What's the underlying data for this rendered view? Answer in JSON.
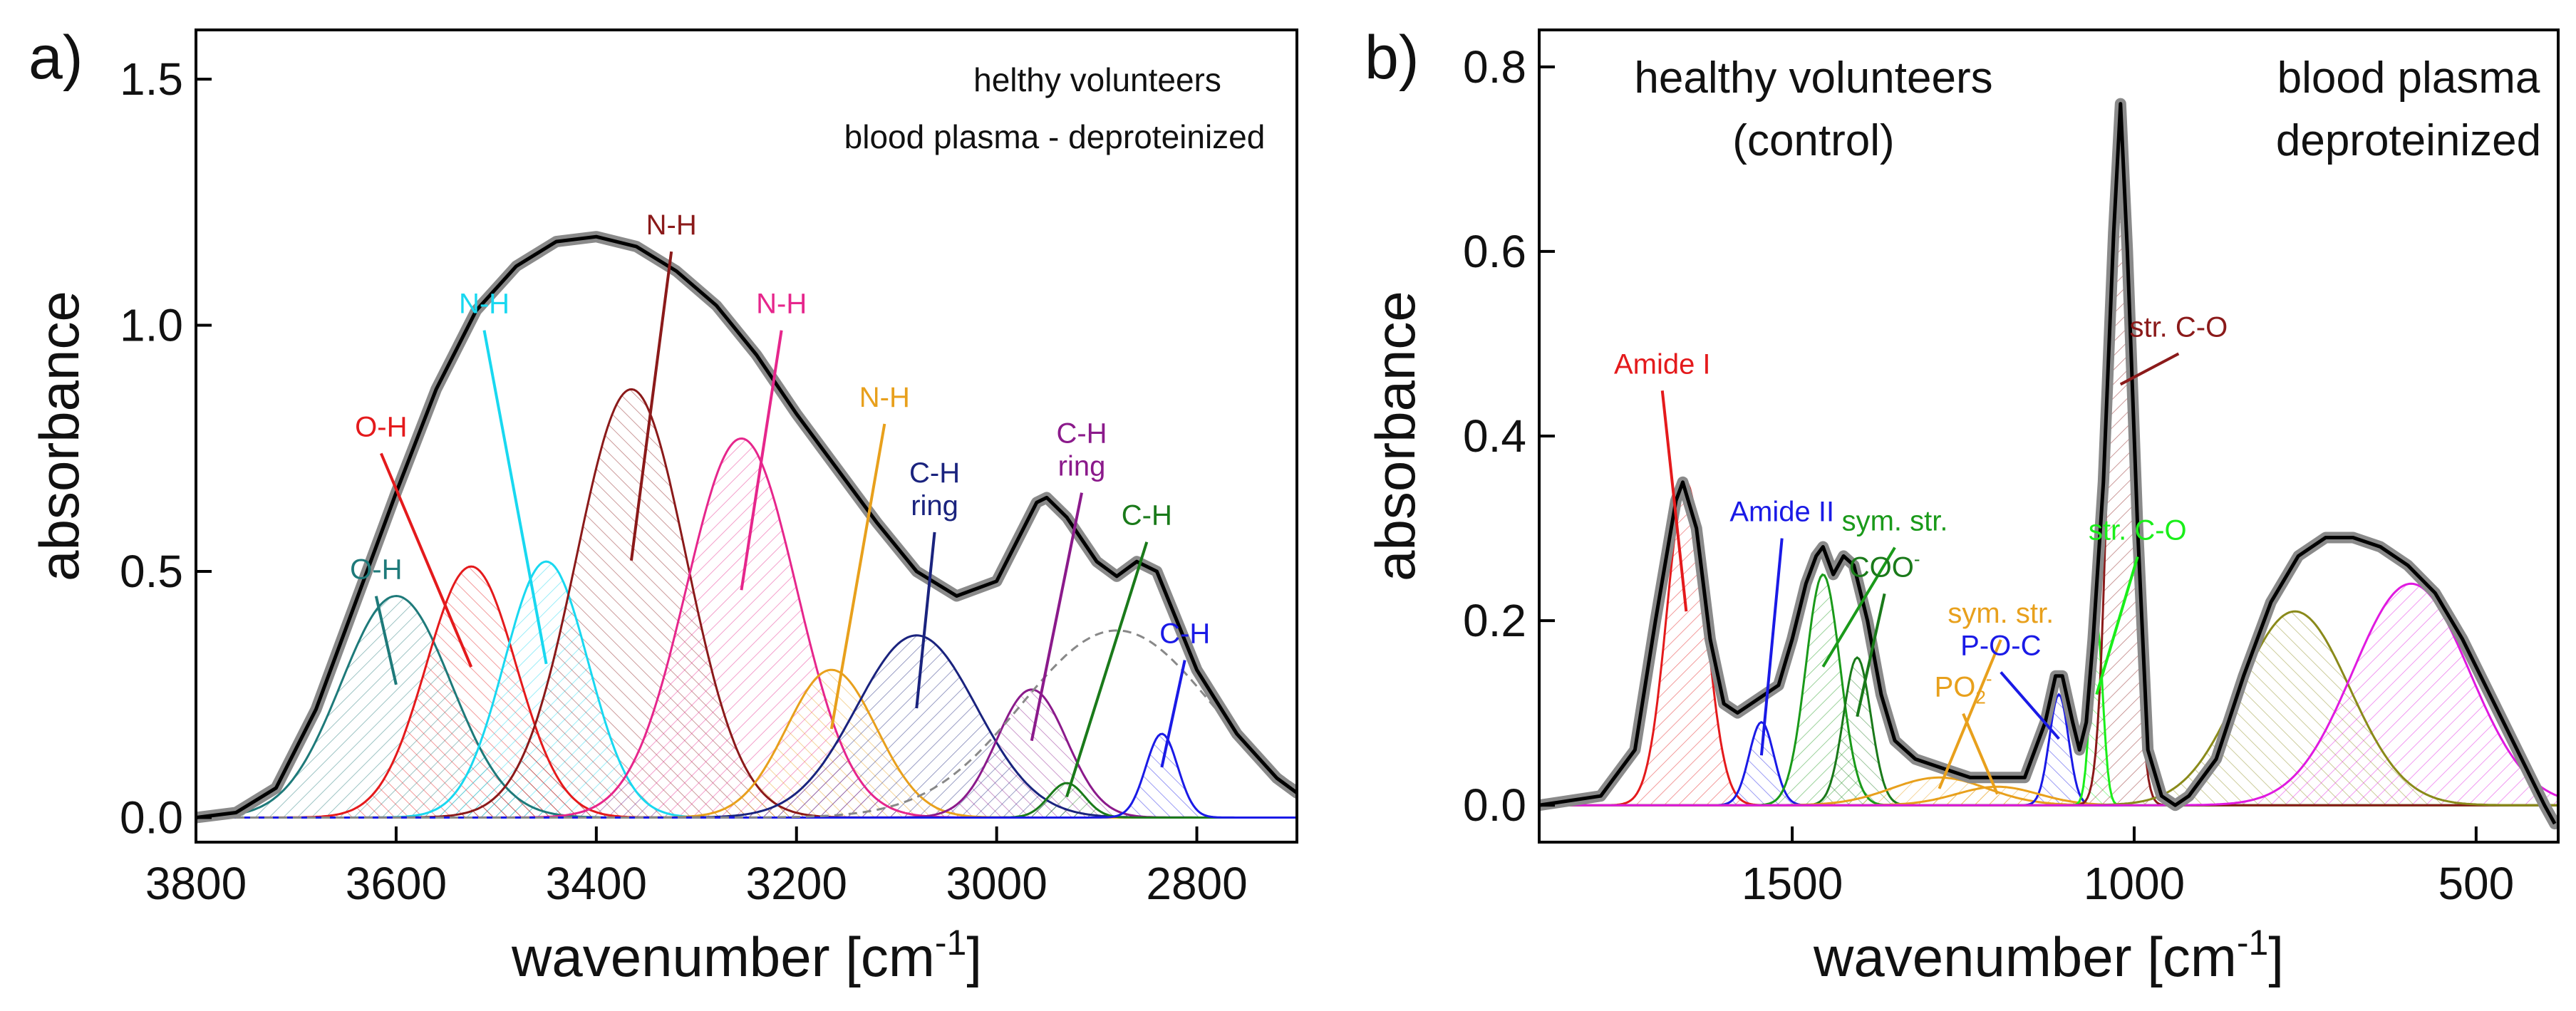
{
  "chart_data": [
    {
      "type": "line",
      "panel": "a)",
      "xlabel": "wavenumber [cm",
      "xlabel_sup": "-1",
      "xlabel_end": "]",
      "ylabel": "absorbance",
      "xlim": [
        3800,
        2700
      ],
      "ylim": [
        -0.05,
        1.6
      ],
      "xticks": [
        3800,
        3600,
        3400,
        3200,
        3000,
        2800
      ],
      "yticks": [
        0.0,
        0.5,
        1.0,
        1.5
      ],
      "xtick_labels": [
        "3800",
        "3600",
        "3400",
        "3200",
        "3000",
        "2800"
      ],
      "ytick_labels": [
        "0.0",
        "0.5",
        "1.0",
        "1.5"
      ],
      "annotations": [
        "helthy volunteers",
        "blood plasma - deproteinized"
      ],
      "measured_color": "#8a8a8a",
      "fit_color": "#000000",
      "envelope": [
        [
          3800,
          0.0
        ],
        [
          3760,
          0.01
        ],
        [
          3720,
          0.06
        ],
        [
          3680,
          0.22
        ],
        [
          3640,
          0.44
        ],
        [
          3600,
          0.66
        ],
        [
          3560,
          0.87
        ],
        [
          3520,
          1.03
        ],
        [
          3480,
          1.12
        ],
        [
          3440,
          1.17
        ],
        [
          3400,
          1.18
        ],
        [
          3360,
          1.16
        ],
        [
          3320,
          1.11
        ],
        [
          3280,
          1.04
        ],
        [
          3240,
          0.94
        ],
        [
          3200,
          0.82
        ],
        [
          3160,
          0.71
        ],
        [
          3120,
          0.6
        ],
        [
          3080,
          0.5
        ],
        [
          3040,
          0.45
        ],
        [
          3000,
          0.48
        ],
        [
          2980,
          0.56
        ],
        [
          2960,
          0.64
        ],
        [
          2950,
          0.65
        ],
        [
          2930,
          0.61
        ],
        [
          2900,
          0.52
        ],
        [
          2880,
          0.49
        ],
        [
          2860,
          0.52
        ],
        [
          2840,
          0.5
        ],
        [
          2820,
          0.4
        ],
        [
          2800,
          0.3
        ],
        [
          2760,
          0.17
        ],
        [
          2720,
          0.08
        ],
        [
          2700,
          0.05
        ]
      ],
      "shoulder": {
        "name": "dashed-baseline-band",
        "center": 2880,
        "height": 0.38,
        "sigma": 95,
        "color": "#888888"
      },
      "series": [
        {
          "name": "O-H",
          "center": 3600,
          "height": 0.45,
          "sigma": 55,
          "color": "#1e7a7a",
          "label_at": [
            3620,
            0.47
          ]
        },
        {
          "name": "O-H",
          "center": 3525,
          "height": 0.51,
          "sigma": 45,
          "color": "#e41a1c",
          "label_at": [
            3615,
            0.76
          ]
        },
        {
          "name": "N-H",
          "center": 3450,
          "height": 0.52,
          "sigma": 42,
          "color": "#19d8f0",
          "label_at": [
            3512,
            1.01
          ]
        },
        {
          "name": "N-H",
          "center": 3365,
          "height": 0.87,
          "sigma": 55,
          "color": "#8b1a1a",
          "label_at": [
            3325,
            1.17
          ]
        },
        {
          "name": "N-H",
          "center": 3255,
          "height": 0.77,
          "sigma": 55,
          "color": "#e6268c",
          "label_at": [
            3215,
            1.01
          ]
        },
        {
          "name": "N-H",
          "center": 3165,
          "height": 0.3,
          "sigma": 45,
          "color": "#e8a01c",
          "label_at": [
            3112,
            0.82
          ]
        },
        {
          "name": "C-H\nring",
          "center": 3080,
          "height": 0.37,
          "sigma": 60,
          "color": "#1a237e",
          "label_at": [
            3062,
            0.6
          ]
        },
        {
          "name": "C-H\nring",
          "center": 2965,
          "height": 0.26,
          "sigma": 35,
          "color": "#8b1a8b",
          "label_at": [
            2915,
            0.68
          ]
        },
        {
          "name": "C-H",
          "center": 2930,
          "height": 0.07,
          "sigma": 18,
          "color": "#1a7a1a",
          "label_at": [
            2850,
            0.58
          ]
        },
        {
          "name": "C-H",
          "center": 2835,
          "height": 0.17,
          "sigma": 16,
          "color": "#1a1ae6",
          "label_at": [
            2812,
            0.34
          ]
        }
      ]
    },
    {
      "type": "line",
      "panel": "b)",
      "xlabel": "wavenumber [cm",
      "xlabel_sup": "-1",
      "xlabel_end": "]",
      "ylabel": "absorbance",
      "xlim": [
        1870,
        380
      ],
      "ylim": [
        -0.04,
        0.84
      ],
      "xticks": [
        1500,
        1000,
        500
      ],
      "yticks": [
        0.0,
        0.2,
        0.4,
        0.6,
        0.8
      ],
      "xtick_labels": [
        "1500",
        "1000",
        "500"
      ],
      "ytick_labels": [
        "0.0",
        "0.2",
        "0.4",
        "0.6",
        "0.8"
      ],
      "annotations": [
        "healthy volunteers",
        "(control)",
        "blood plasma",
        "deproteinized"
      ],
      "measured_color": "#8a8a8a",
      "fit_color": "#000000",
      "baseline_color": "#e41a1c",
      "envelope": [
        [
          1870,
          0.0
        ],
        [
          1780,
          0.01
        ],
        [
          1730,
          0.06
        ],
        [
          1700,
          0.2
        ],
        [
          1670,
          0.33
        ],
        [
          1660,
          0.35
        ],
        [
          1640,
          0.3
        ],
        [
          1620,
          0.18
        ],
        [
          1600,
          0.11
        ],
        [
          1580,
          0.1
        ],
        [
          1560,
          0.11
        ],
        [
          1540,
          0.12
        ],
        [
          1520,
          0.13
        ],
        [
          1500,
          0.18
        ],
        [
          1480,
          0.24
        ],
        [
          1465,
          0.27
        ],
        [
          1455,
          0.28
        ],
        [
          1440,
          0.25
        ],
        [
          1425,
          0.27
        ],
        [
          1410,
          0.26
        ],
        [
          1390,
          0.2
        ],
        [
          1370,
          0.12
        ],
        [
          1350,
          0.07
        ],
        [
          1320,
          0.05
        ],
        [
          1280,
          0.04
        ],
        [
          1240,
          0.03
        ],
        [
          1200,
          0.03
        ],
        [
          1160,
          0.03
        ],
        [
          1130,
          0.09
        ],
        [
          1115,
          0.14
        ],
        [
          1105,
          0.14
        ],
        [
          1090,
          0.09
        ],
        [
          1080,
          0.06
        ],
        [
          1070,
          0.09
        ],
        [
          1060,
          0.18
        ],
        [
          1045,
          0.35
        ],
        [
          1030,
          0.62
        ],
        [
          1020,
          0.76
        ],
        [
          1010,
          0.6
        ],
        [
          995,
          0.3
        ],
        [
          980,
          0.06
        ],
        [
          960,
          0.01
        ],
        [
          940,
          0.0
        ],
        [
          920,
          0.01
        ],
        [
          880,
          0.05
        ],
        [
          840,
          0.14
        ],
        [
          800,
          0.22
        ],
        [
          760,
          0.27
        ],
        [
          720,
          0.29
        ],
        [
          680,
          0.29
        ],
        [
          640,
          0.28
        ],
        [
          600,
          0.26
        ],
        [
          560,
          0.23
        ],
        [
          520,
          0.18
        ],
        [
          480,
          0.12
        ],
        [
          440,
          0.06
        ],
        [
          400,
          0.0
        ],
        [
          385,
          -0.02
        ]
      ],
      "series": [
        {
          "name": "Amide I",
          "center": 1655,
          "height": 0.35,
          "sigma": 28,
          "color": "#e41a1c",
          "label_at": [
            1690,
            0.46
          ]
        },
        {
          "name": "Amide II",
          "center": 1545,
          "height": 0.09,
          "sigma": 18,
          "color": "#1a1ae6",
          "label_at": [
            1515,
            0.3
          ]
        },
        {
          "name": "sym. str.",
          "center": 1455,
          "height": 0.25,
          "sigma": 25,
          "color": "#1a9a1a",
          "label_at": [
            1350,
            0.29
          ]
        },
        {
          "name": "COO",
          "sup": "-",
          "center": 1405,
          "height": 0.16,
          "sigma": 20,
          "color": "#1a7a1a",
          "label_at": [
            1365,
            0.24
          ]
        },
        {
          "name": "sym. str.",
          "center": 1285,
          "height": 0.03,
          "sigma": 70,
          "color": "#e8a01c",
          "label_at": [
            1195,
            0.19
          ]
        },
        {
          "name": "P-O-C",
          "center": 1110,
          "height": 0.12,
          "sigma": 14,
          "color": "#1a1ae6",
          "label_at": [
            1195,
            0.155
          ]
        },
        {
          "name": "PO",
          "sub": "2",
          "sup": "-",
          "center": 1200,
          "height": 0.02,
          "sigma": 60,
          "color": "#e8a01c",
          "label_at": [
            1250,
            0.11
          ]
        },
        {
          "name": "str. C-O",
          "center": 1055,
          "height": 0.2,
          "sigma": 9,
          "color": "#1aee1a",
          "label_at": [
            995,
            0.28
          ]
        },
        {
          "name": "str. C-O",
          "center": 1020,
          "height": 0.76,
          "sigma": 16,
          "color": "#8b1a1a",
          "label_at": [
            935,
            0.5
          ]
        },
        {
          "name": "olive-broad-band",
          "center": 765,
          "height": 0.21,
          "sigma": 80,
          "color": "#8a8a1a"
        },
        {
          "name": "magenta-broad-band",
          "center": 595,
          "height": 0.24,
          "sigma": 85,
          "color": "#e01ae0"
        }
      ]
    }
  ]
}
